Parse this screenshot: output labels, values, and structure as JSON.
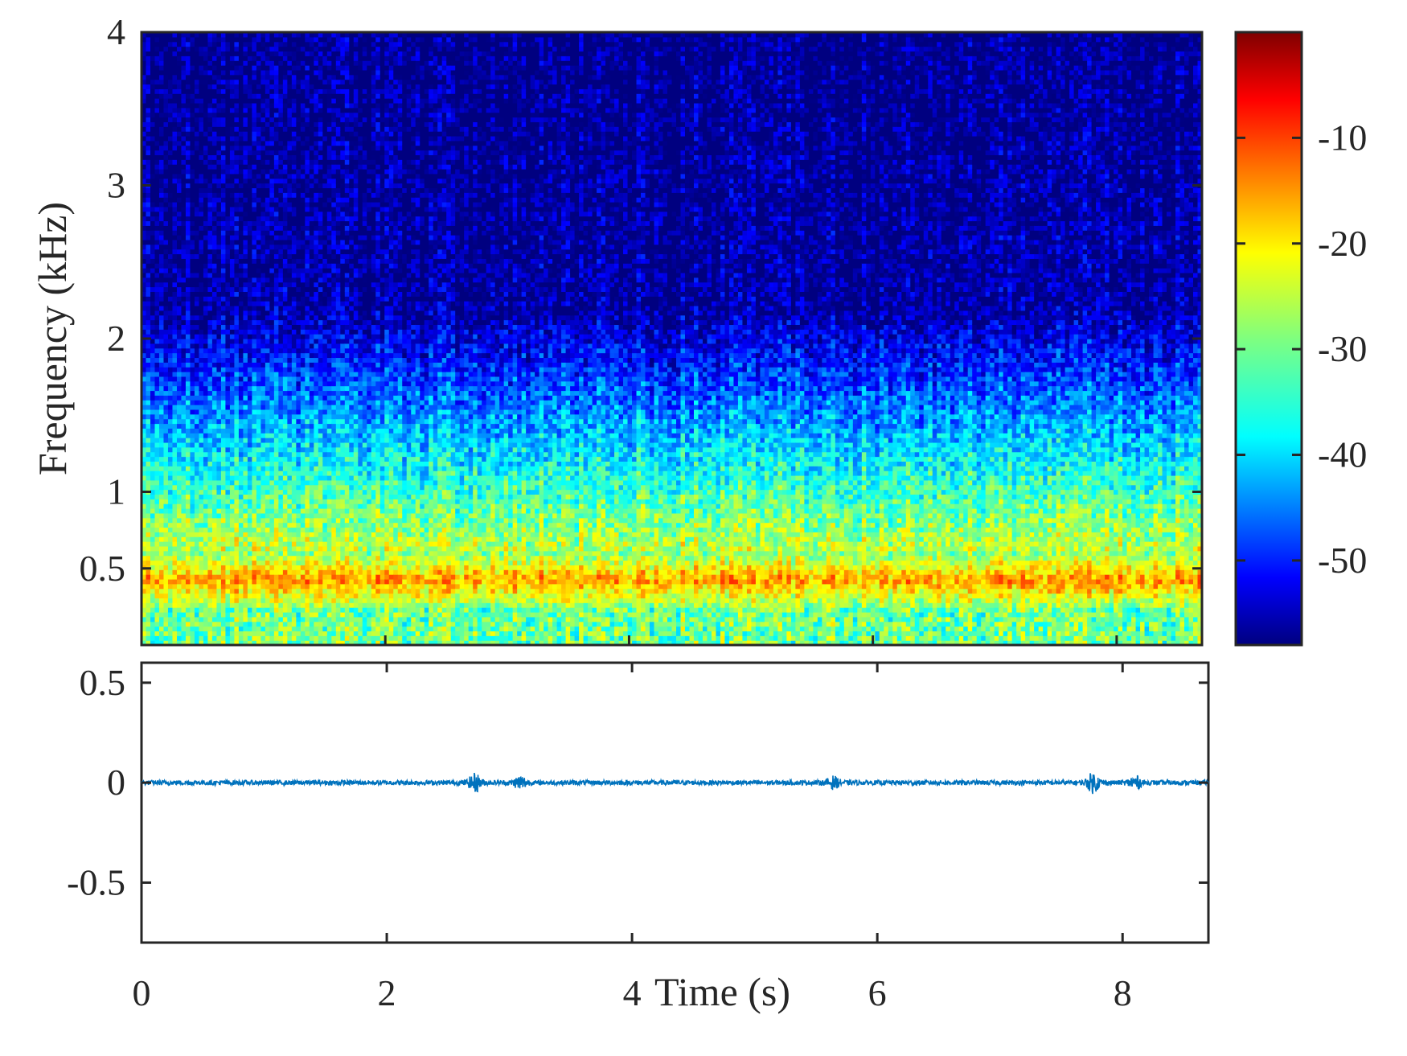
{
  "chart_data": [
    {
      "type": "heatmap",
      "title": "",
      "xlabel": "",
      "ylabel": "Frequency (kHz)",
      "x_range": [
        0,
        8.7
      ],
      "y_range": [
        0,
        4
      ],
      "y_ticks": [
        {
          "value": 0.5,
          "label": "0.5"
        },
        {
          "value": 1,
          "label": "1"
        },
        {
          "value": 2,
          "label": "2"
        },
        {
          "value": 3,
          "label": "3"
        },
        {
          "value": 4,
          "label": "4"
        }
      ],
      "x_ticks": [
        2,
        4,
        6,
        8
      ],
      "colormap": "jet",
      "colorbar": {
        "range": [
          -58,
          0
        ],
        "ticks": [
          {
            "value": -10,
            "label": "-10"
          },
          {
            "value": -20,
            "label": "-20"
          },
          {
            "value": -30,
            "label": "-30"
          },
          {
            "value": -40,
            "label": "-40"
          },
          {
            "value": -50,
            "label": "-50"
          }
        ]
      },
      "energy_band_khz": [
        0.25,
        0.6
      ],
      "energy_band_peak_db": -8,
      "grid": false
    },
    {
      "type": "line",
      "title": "",
      "xlabel": "Time (s)",
      "ylabel": "",
      "xlim": [
        0,
        8.7
      ],
      "ylim": [
        -0.8,
        0.6
      ],
      "x_ticks": [
        {
          "value": 0,
          "label": "0"
        },
        {
          "value": 2,
          "label": "2"
        },
        {
          "value": 4,
          "label": "4"
        },
        {
          "value": 6,
          "label": "6"
        },
        {
          "value": 8,
          "label": "8"
        }
      ],
      "y_ticks": [
        {
          "value": 0.5,
          "label": "0.5"
        },
        {
          "value": 0,
          "label": "0"
        },
        {
          "value": -0.5,
          "label": "-0.5"
        }
      ],
      "series": [
        {
          "color": "#0072bd",
          "baseline_amplitude": 0.012,
          "bursts": [
            {
              "t": 2.72,
              "amp": 0.04
            },
            {
              "t": 3.09,
              "amp": 0.03
            },
            {
              "t": 5.64,
              "amp": 0.025
            },
            {
              "t": 7.76,
              "amp": 0.045
            },
            {
              "t": 8.1,
              "amp": 0.03
            }
          ]
        }
      ],
      "grid": false
    }
  ]
}
